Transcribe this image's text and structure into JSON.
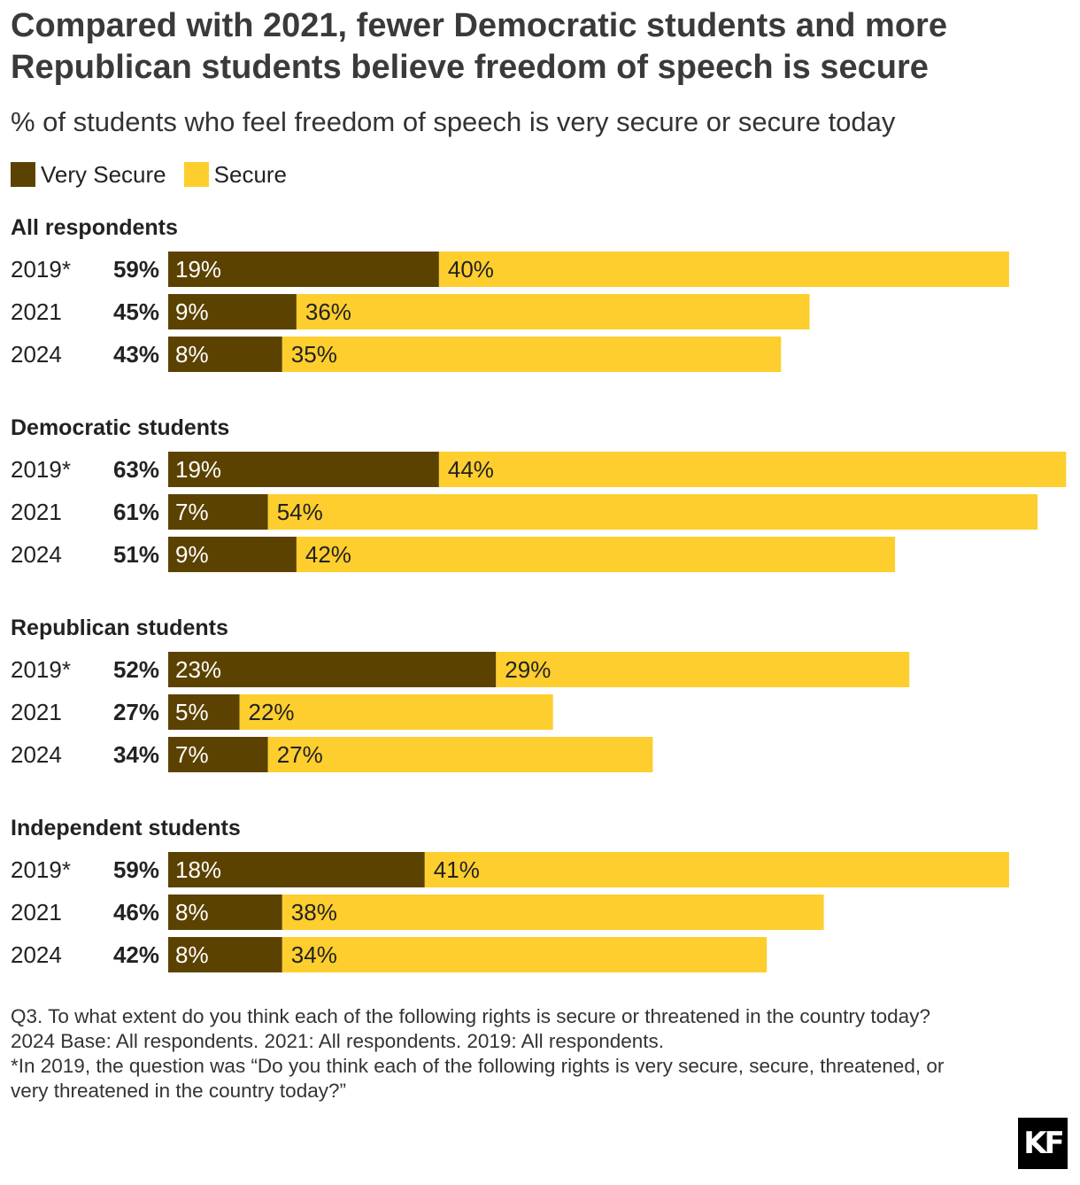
{
  "header": {
    "title": "Compared with 2021, fewer Democratic students and more Republican students believe freedom of speech is secure",
    "subtitle": "% of students who feel freedom of speech is very secure or secure today"
  },
  "colors": {
    "very_secure": "#5c4200",
    "secure": "#fdce2e",
    "title_text": "#3a3a3a"
  },
  "chart_data": {
    "type": "bar",
    "orientation": "horizontal",
    "stacked": true,
    "series": [
      {
        "name": "Very Secure",
        "color": "#5c4200"
      },
      {
        "name": "Secure",
        "color": "#fdce2e"
      }
    ],
    "legend_position": "top-left",
    "grid": false,
    "groups": [
      {
        "name": "All respondents",
        "rows": [
          {
            "year": "2019*",
            "total": "59%",
            "very_secure": 19,
            "secure": 40
          },
          {
            "year": "2021",
            "total": "45%",
            "very_secure": 9,
            "secure": 36
          },
          {
            "year": "2024",
            "total": "43%",
            "very_secure": 8,
            "secure": 35
          }
        ]
      },
      {
        "name": "Democratic students",
        "rows": [
          {
            "year": "2019*",
            "total": "63%",
            "very_secure": 19,
            "secure": 44
          },
          {
            "year": "2021",
            "total": "61%",
            "very_secure": 7,
            "secure": 54
          },
          {
            "year": "2024",
            "total": "51%",
            "very_secure": 9,
            "secure": 42
          }
        ]
      },
      {
        "name": "Republican students",
        "rows": [
          {
            "year": "2019*",
            "total": "52%",
            "very_secure": 23,
            "secure": 29
          },
          {
            "year": "2021",
            "total": "27%",
            "very_secure": 5,
            "secure": 22
          },
          {
            "year": "2024",
            "total": "34%",
            "very_secure": 7,
            "secure": 27
          }
        ]
      },
      {
        "name": "Independent students",
        "rows": [
          {
            "year": "2019*",
            "total": "59%",
            "very_secure": 18,
            "secure": 41
          },
          {
            "year": "2021",
            "total": "46%",
            "very_secure": 8,
            "secure": 38
          },
          {
            "year": "2024",
            "total": "42%",
            "very_secure": 8,
            "secure": 34
          }
        ]
      }
    ]
  },
  "footnotes": [
    "Q3. To what extent do you think each of the following rights is secure or threatened in the country today?",
    "2024 Base: All respondents. 2021: All respondents. 2019: All respondents.",
    "*In 2019, the question was “Do you think each of the following rights is very secure, secure, threatened, or",
    "very threatened in the country today?”"
  ],
  "logo": {
    "icon": "kf-logo-icon",
    "text": "KF"
  }
}
